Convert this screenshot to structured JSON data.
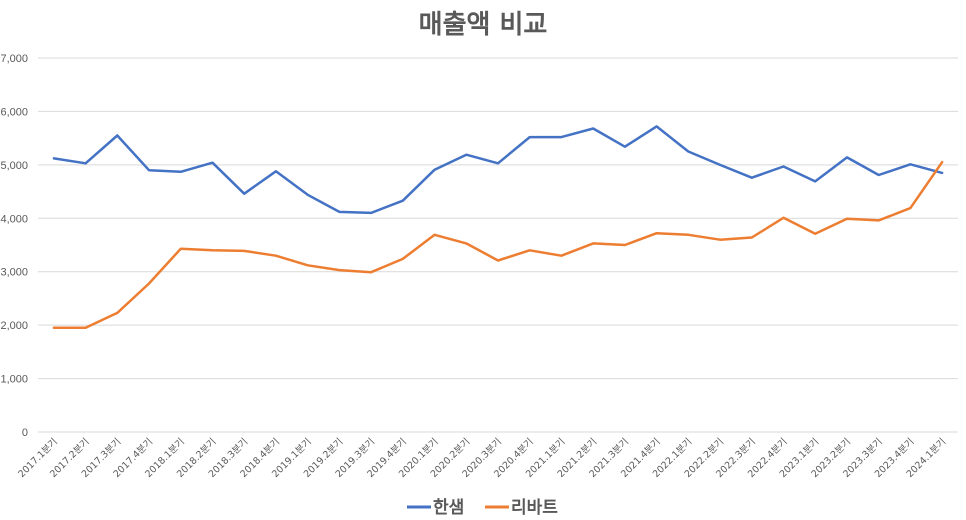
{
  "chart_data": {
    "type": "line",
    "title": "매출액 비교",
    "xlabel": "",
    "ylabel": "",
    "ylim": [
      0,
      7000
    ],
    "yticks": [
      0,
      1000,
      2000,
      3000,
      4000,
      5000,
      6000,
      7000
    ],
    "ytick_labels": [
      "0",
      "1,000",
      "2,000",
      "3,000",
      "4,000",
      "5,000",
      "6,000",
      "7,000"
    ],
    "grid": true,
    "legend": "bottom",
    "categories": [
      "2017.1분기",
      "2017.2분기",
      "2017.3분기",
      "2017.4분기",
      "2018.1분기",
      "2018.2분기",
      "2018.3분기",
      "2018.4분기",
      "2019.1분기",
      "2019.2분기",
      "2019.3분기",
      "2019.4분기",
      "2020.1분기",
      "2020.2분기",
      "2020.3분기",
      "2020.4분기",
      "2021.1분기",
      "2021.2분기",
      "2021.3분기",
      "2021.4분기",
      "2022.1분기",
      "2022.2분기",
      "2022.3분기",
      "2022.4분기",
      "2023.1분기",
      "2023.2분기",
      "2023.3분기",
      "2023.4분기",
      "2024.1분기"
    ],
    "series": [
      {
        "name": "한샘",
        "color": "#4472c4",
        "values": [
          5120,
          5030,
          5550,
          4900,
          4870,
          5040,
          4460,
          4880,
          4440,
          4120,
          4100,
          4330,
          4910,
          5190,
          5030,
          5520,
          5520,
          5680,
          5340,
          5720,
          5250,
          5000,
          4760,
          4970,
          4690,
          5140,
          4810,
          5010,
          4850
        ]
      },
      {
        "name": "리바트",
        "color": "#ed7d31",
        "values": [
          1950,
          1950,
          2230,
          2780,
          3430,
          3400,
          3390,
          3300,
          3120,
          3030,
          2990,
          3240,
          3690,
          3530,
          3210,
          3400,
          3300,
          3530,
          3500,
          3720,
          3690,
          3600,
          3640,
          4010,
          3710,
          3990,
          3960,
          4190,
          5050
        ]
      }
    ]
  }
}
